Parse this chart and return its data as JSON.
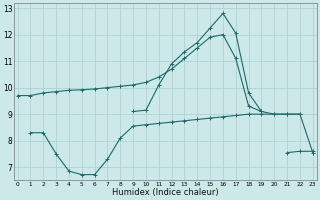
{
  "xlabel": "Humidex (Indice chaleur)",
  "bg_color": "#cce8e8",
  "line_color": "#1a6b6b",
  "grid_color": "#aacece",
  "x": [
    0,
    1,
    2,
    3,
    4,
    5,
    6,
    7,
    8,
    9,
    10,
    11,
    12,
    13,
    14,
    15,
    16,
    17,
    18,
    19,
    20,
    21,
    22,
    23
  ],
  "line1": [
    9.7,
    9.7,
    9.8,
    9.85,
    9.9,
    9.92,
    9.95,
    10.0,
    10.05,
    10.1,
    10.2,
    10.4,
    10.7,
    11.1,
    11.5,
    11.9,
    12.0,
    11.1,
    9.3,
    9.1,
    9.0,
    9.0,
    9.0,
    null
  ],
  "line2": [
    null,
    null,
    null,
    null,
    null,
    null,
    null,
    null,
    null,
    9.1,
    9.15,
    10.1,
    10.9,
    11.35,
    11.7,
    12.25,
    12.8,
    12.05,
    9.8,
    9.1,
    null,
    null,
    null,
    null
  ],
  "line3": [
    null,
    8.3,
    8.3,
    7.5,
    6.85,
    6.72,
    6.72,
    7.3,
    8.1,
    8.55,
    8.6,
    8.65,
    8.7,
    8.75,
    8.8,
    8.85,
    8.9,
    8.95,
    9.0,
    9.0,
    9.0,
    9.0,
    9.0,
    7.55
  ],
  "line4": [
    null,
    null,
    null,
    null,
    null,
    null,
    null,
    null,
    null,
    null,
    null,
    null,
    null,
    null,
    null,
    null,
    null,
    null,
    null,
    null,
    null,
    7.55,
    7.6,
    7.6
  ],
  "xlim": [
    0,
    23
  ],
  "ylim": [
    6.5,
    13.2
  ],
  "yticks": [
    7,
    8,
    9,
    10,
    11,
    12,
    13
  ],
  "xticks": [
    0,
    1,
    2,
    3,
    4,
    5,
    6,
    7,
    8,
    9,
    10,
    11,
    12,
    13,
    14,
    15,
    16,
    17,
    18,
    19,
    20,
    21,
    22,
    23
  ]
}
